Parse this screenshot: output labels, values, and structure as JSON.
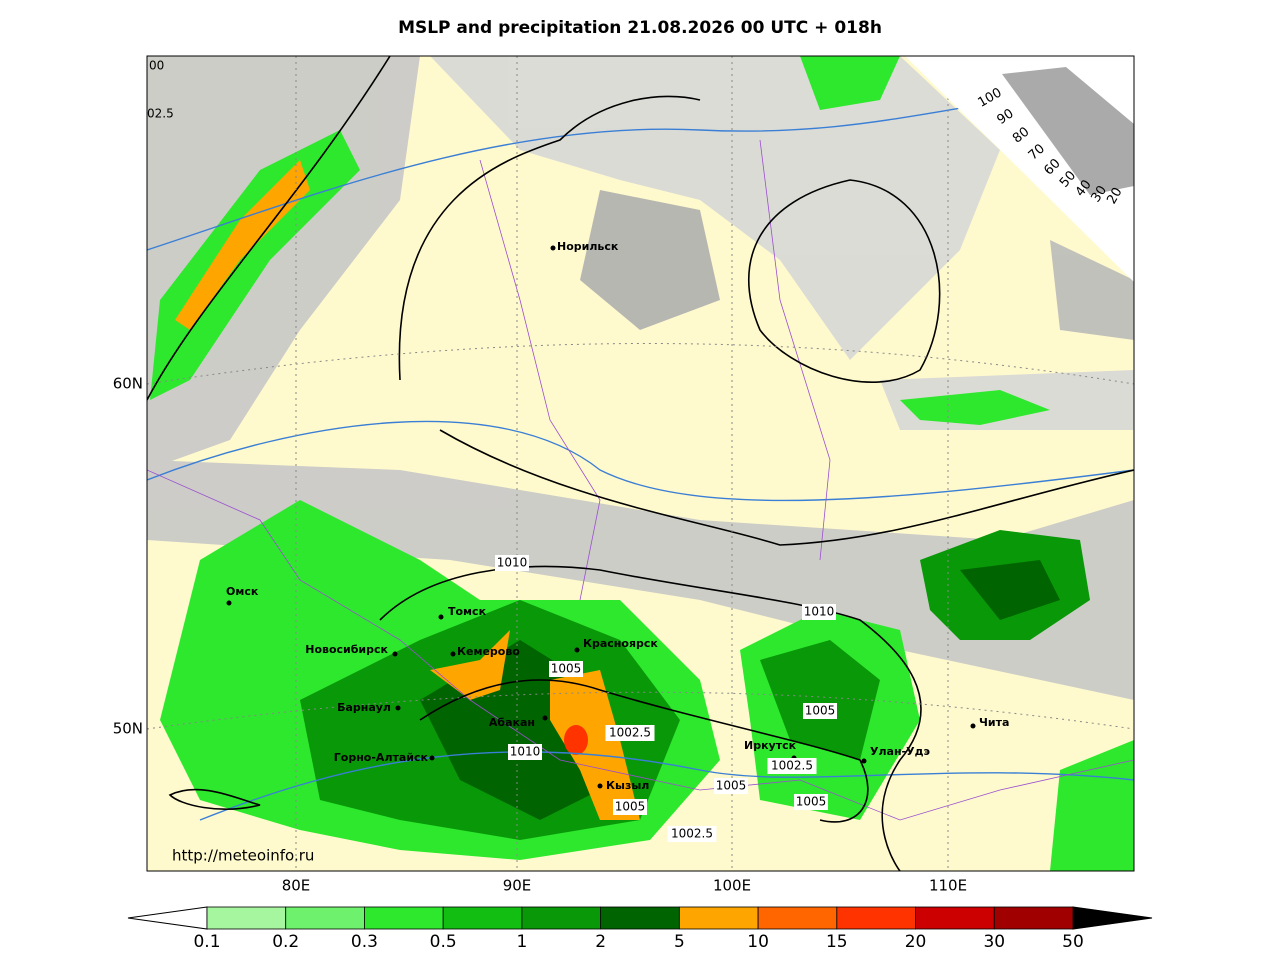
{
  "title": "MSLP and precipitation 21.08.2026 00 UTC + 018h",
  "map": {
    "cities": [
      "Норильск",
      "Омск",
      "Томск",
      "Новосибирск",
      "Кемерово",
      "Красноярск",
      "Барнаул",
      "Абакан",
      "Горно-Алтайск",
      "Кызыл",
      "Иркутск",
      "Улан-Удэ",
      "Чита"
    ],
    "isobar_labels": [
      1010,
      1010,
      1005,
      1005,
      1002.5,
      1010,
      1002.5,
      1005,
      1005,
      1005,
      1002.5
    ],
    "edge_labels": [
      "00",
      "02.5"
    ],
    "x_labels": [
      "80E",
      "90E",
      "100E",
      "110E"
    ],
    "y_labels": [
      "60N",
      "50N"
    ],
    "url": "http://meteoinfo.ru"
  },
  "cloud_scale": [
    100,
    90,
    80,
    70,
    60,
    50,
    40,
    30,
    20
  ],
  "colorbar": {
    "ticks": [
      0.1,
      0.2,
      0.3,
      0.5,
      1,
      2,
      5,
      10,
      15,
      20,
      30,
      50
    ],
    "colors": [
      "#a6f59f",
      "#6ef26e",
      "#2ee82e",
      "#12be12",
      "#089808",
      "#006400",
      "#ffa500",
      "#ff6600",
      "#ff3300",
      "#cc0000",
      "#a00000"
    ]
  }
}
